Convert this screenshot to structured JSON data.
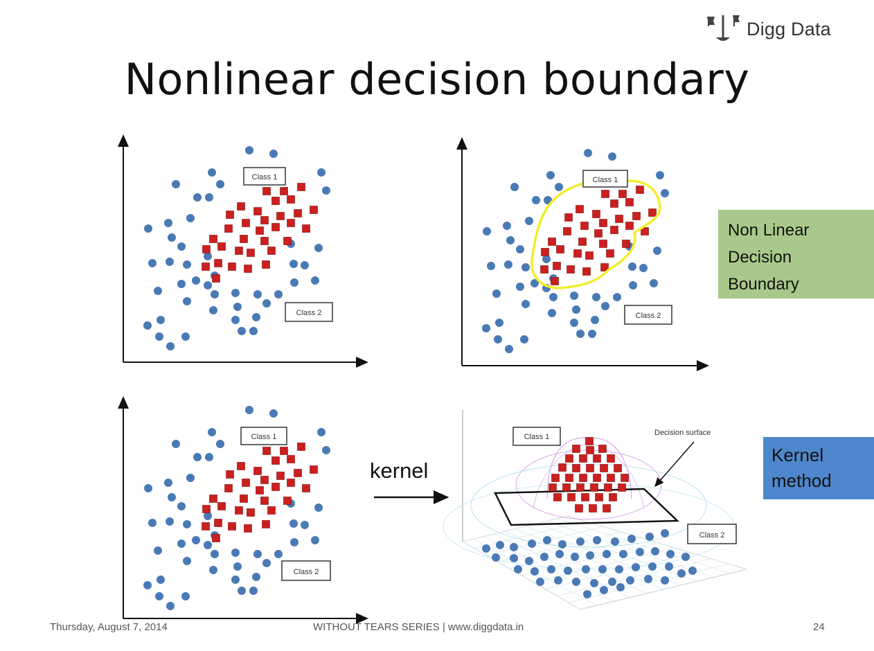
{
  "brand": {
    "name": "Digg Data",
    "icon": "flag-scale-icon"
  },
  "title": "Nonlinear decision boundary",
  "panels": {
    "top_left": {
      "class1": "Class 1",
      "class2": "Class 2"
    },
    "top_right": {
      "class1": "Class 1",
      "class2": "Class 2"
    },
    "bottom_left": {
      "class1": "Class 1",
      "class2": "Class 2"
    },
    "bottom_right": {
      "class1": "Class 1",
      "class2": "Class 2",
      "annotation": "Decision surface"
    }
  },
  "kernel_label": "kernel",
  "callouts": {
    "nonlinear": {
      "lines": [
        "Non Linear",
        "Decision",
        "Boundary"
      ],
      "color": "#a9c98a"
    },
    "kernel": {
      "lines": [
        "Kernel",
        "method"
      ],
      "color": "#4f87cc"
    }
  },
  "colors": {
    "class1_marker": "#cc1f1f",
    "class2_marker": "#4a7ab5",
    "boundary": "#f2ee2a"
  },
  "footer": {
    "date": "Thursday, August 7, 2014",
    "series": "WITHOUT TEARS SERIES | www.diggdata.in",
    "page": "24"
  }
}
